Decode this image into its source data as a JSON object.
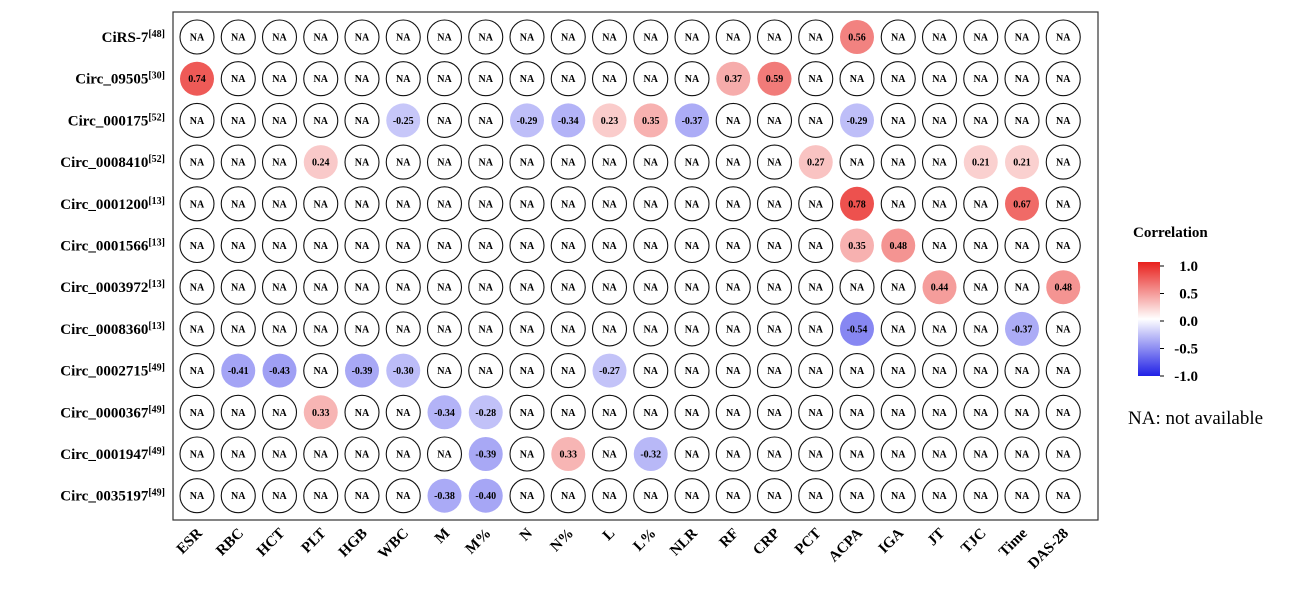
{
  "chart_data": {
    "type": "heatmap",
    "rows": [
      {
        "name": "CiRS-7",
        "ref": "[48]"
      },
      {
        "name": "Circ_09505",
        "ref": "[30]"
      },
      {
        "name": "Circ_000175",
        "ref": "[52]"
      },
      {
        "name": "Circ_0008410",
        "ref": "[52]"
      },
      {
        "name": "Circ_0001200",
        "ref": "[13]"
      },
      {
        "name": "Circ_0001566",
        "ref": "[13]"
      },
      {
        "name": "Circ_0003972",
        "ref": "[13]"
      },
      {
        "name": "Circ_0008360",
        "ref": "[13]"
      },
      {
        "name": "Circ_0002715",
        "ref": "[49]"
      },
      {
        "name": "Circ_0000367",
        "ref": "[49]"
      },
      {
        "name": "Circ_0001947",
        "ref": "[49]"
      },
      {
        "name": "Circ_0035197",
        "ref": "[49]"
      }
    ],
    "columns": [
      "ESR",
      "RBC",
      "HCT",
      "PLT",
      "HGB",
      "WBC",
      "M",
      "M%",
      "N",
      "N%",
      "L",
      "L%",
      "NLR",
      "RF",
      "CRP",
      "PCT",
      "ACPA",
      "IGA",
      "JT",
      "TJC",
      "Time",
      "DAS-28"
    ],
    "values": [
      [
        null,
        null,
        null,
        null,
        null,
        null,
        null,
        null,
        null,
        null,
        null,
        null,
        null,
        null,
        null,
        null,
        0.56,
        null,
        null,
        null,
        null,
        null
      ],
      [
        0.74,
        null,
        null,
        null,
        null,
        null,
        null,
        null,
        null,
        null,
        null,
        null,
        null,
        0.37,
        0.59,
        null,
        null,
        null,
        null,
        null,
        null,
        null
      ],
      [
        null,
        null,
        null,
        null,
        null,
        -0.25,
        null,
        null,
        -0.29,
        -0.34,
        0.23,
        0.35,
        -0.37,
        null,
        null,
        null,
        -0.29,
        null,
        null,
        null,
        null,
        null
      ],
      [
        null,
        null,
        null,
        0.24,
        null,
        null,
        null,
        null,
        null,
        null,
        null,
        null,
        null,
        null,
        null,
        0.27,
        null,
        null,
        null,
        0.21,
        0.21,
        null
      ],
      [
        null,
        null,
        null,
        null,
        null,
        null,
        null,
        null,
        null,
        null,
        null,
        null,
        null,
        null,
        null,
        null,
        0.78,
        null,
        null,
        null,
        0.67,
        null
      ],
      [
        null,
        null,
        null,
        null,
        null,
        null,
        null,
        null,
        null,
        null,
        null,
        null,
        null,
        null,
        null,
        null,
        0.35,
        0.48,
        null,
        null,
        null,
        null
      ],
      [
        null,
        null,
        null,
        null,
        null,
        null,
        null,
        null,
        null,
        null,
        null,
        null,
        null,
        null,
        null,
        null,
        null,
        null,
        0.44,
        null,
        null,
        0.48
      ],
      [
        null,
        null,
        null,
        null,
        null,
        null,
        null,
        null,
        null,
        null,
        null,
        null,
        null,
        null,
        null,
        null,
        -0.54,
        null,
        null,
        null,
        -0.37,
        null
      ],
      [
        null,
        -0.41,
        -0.43,
        null,
        -0.39,
        -0.3,
        null,
        null,
        null,
        null,
        -0.27,
        null,
        null,
        null,
        null,
        null,
        null,
        null,
        null,
        null,
        null,
        null
      ],
      [
        null,
        null,
        null,
        0.33,
        null,
        null,
        -0.34,
        -0.28,
        null,
        null,
        null,
        null,
        null,
        null,
        null,
        null,
        null,
        null,
        null,
        null,
        null,
        null
      ],
      [
        null,
        null,
        null,
        null,
        null,
        null,
        null,
        -0.39,
        null,
        0.33,
        null,
        -0.32,
        null,
        null,
        null,
        null,
        null,
        null,
        null,
        null,
        null,
        null
      ],
      [
        null,
        null,
        null,
        null,
        null,
        null,
        -0.38,
        -0.4,
        null,
        null,
        null,
        null,
        null,
        null,
        null,
        null,
        null,
        null,
        null,
        null,
        null,
        null
      ]
    ],
    "na_label": "NA",
    "legend": {
      "title": "Correlation",
      "ticks": [
        "1.0",
        "0.5",
        "0.0",
        "-0.5",
        "-1.0"
      ],
      "range": [
        -1.0,
        1.0
      ],
      "colors": {
        "high": "#e8201c",
        "mid": "#ffffff",
        "low": "#2020e6"
      },
      "placement": "right"
    },
    "note": "NA: not available"
  }
}
